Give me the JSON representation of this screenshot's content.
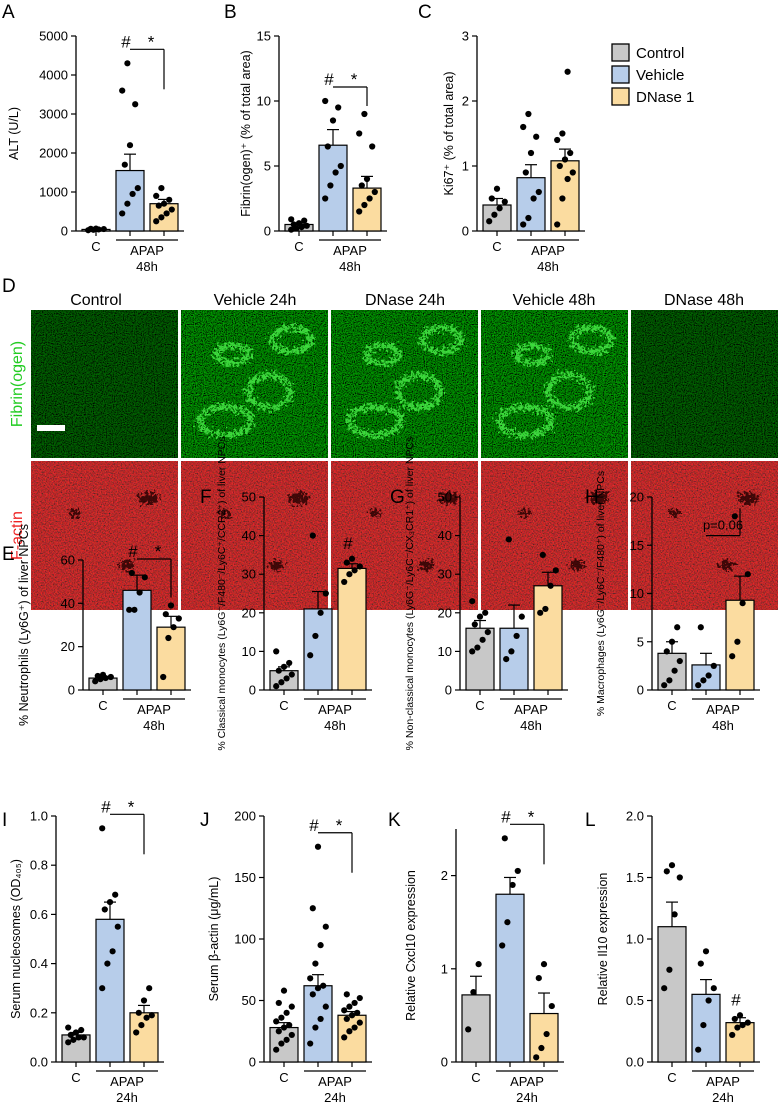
{
  "legend": [
    {
      "name": "Control",
      "color": "#c8c8c8"
    },
    {
      "name": "Vehicle",
      "color": "#b7cdea"
    },
    {
      "name": "DNase 1",
      "color": "#fbdca0"
    }
  ],
  "micrograph": {
    "panel": "D",
    "columns": [
      "Control",
      "Vehicle 24h",
      "DNase 24h",
      "Vehicle 48h",
      "DNase 48h"
    ],
    "rows": [
      {
        "label": "Fibrin(ogen)",
        "color": "#22cc22"
      },
      {
        "label": "F-actin",
        "color": "#ee2222"
      }
    ]
  },
  "chart_data": [
    {
      "panel": "A",
      "type": "bar",
      "categories": [
        "C",
        "APAP",
        "APAP"
      ],
      "group_label": "APAP",
      "time_label": "48h",
      "ylabel": "ALT (U/L)",
      "ylim": [
        0,
        5000
      ],
      "yticks": [
        0,
        1000,
        2000,
        3000,
        4000,
        5000
      ],
      "values": [
        40,
        1550,
        700
      ],
      "errors": [
        10,
        420,
        110
      ],
      "points": [
        [
          20,
          30,
          40,
          50,
          55,
          60
        ],
        [
          450,
          700,
          950,
          1100,
          1700,
          2200,
          3250,
          3600,
          4300
        ],
        [
          250,
          350,
          450,
          550,
          650,
          700,
          800,
          900,
          1100
        ]
      ],
      "annotations": [
        {
          "text": "#",
          "over": 1
        },
        {
          "text": "*",
          "from": 1,
          "to": 2
        }
      ]
    },
    {
      "panel": "B",
      "type": "bar",
      "categories": [
        "C",
        "APAP",
        "APAP"
      ],
      "group_label": "APAP",
      "time_label": "48h",
      "ylabel": "Fibrin(ogen)⁺ (% of total area)",
      "ylim": [
        0,
        15
      ],
      "yticks": [
        0,
        5,
        10,
        15
      ],
      "values": [
        0.5,
        6.6,
        3.3
      ],
      "errors": [
        0.1,
        1.2,
        0.9
      ],
      "points": [
        [
          0.1,
          0.2,
          0.3,
          0.4,
          0.5,
          0.6,
          0.8,
          0.9
        ],
        [
          2.5,
          3.5,
          4.5,
          5.0,
          6.5,
          8.5,
          9.5,
          10.0
        ],
        [
          1.5,
          2.0,
          2.5,
          3.0,
          3.5,
          4.0,
          6.5,
          7.5,
          9.0
        ]
      ],
      "annotations": [
        {
          "text": "#",
          "over": 1
        },
        {
          "text": "*",
          "from": 1,
          "to": 2
        }
      ]
    },
    {
      "panel": "C",
      "type": "bar",
      "categories": [
        "C",
        "APAP",
        "APAP"
      ],
      "group_label": "APAP",
      "time_label": "48h",
      "ylabel": "Ki67⁺ (% of total area)",
      "ylim": [
        0,
        3
      ],
      "yticks": [
        0,
        1,
        2,
        3
      ],
      "values": [
        0.4,
        0.82,
        1.08
      ],
      "errors": [
        0.1,
        0.2,
        0.18
      ],
      "points": [
        [
          0.15,
          0.25,
          0.35,
          0.45,
          0.5,
          0.65
        ],
        [
          0.1,
          0.2,
          0.5,
          0.6,
          0.9,
          1.2,
          1.45,
          1.6,
          1.8
        ],
        [
          0.1,
          0.5,
          0.8,
          0.9,
          1.0,
          1.1,
          1.2,
          1.4,
          1.5,
          2.45
        ]
      ],
      "annotations": []
    },
    {
      "panel": "E",
      "type": "bar",
      "categories": [
        "C",
        "APAP",
        "APAP"
      ],
      "group_label": "APAP",
      "time_label": "48h",
      "ylabel": "% Neutrophils (Ly6G⁺) of liver NPCs",
      "ylim": [
        0,
        60
      ],
      "yticks": [
        0,
        20,
        40,
        60
      ],
      "values": [
        5.5,
        46,
        29
      ],
      "errors": [
        0.7,
        7,
        5
      ],
      "points": [
        [
          4,
          5,
          5.5,
          6,
          6.5,
          7
        ],
        [
          37,
          37,
          45,
          52,
          54
        ],
        [
          6,
          24,
          29,
          33,
          35,
          39
        ]
      ],
      "annotations": [
        {
          "text": "#",
          "over": 1
        },
        {
          "text": "*",
          "from": 1,
          "to": 2
        }
      ]
    },
    {
      "panel": "F",
      "type": "bar",
      "categories": [
        "C",
        "APAP",
        "APAP"
      ],
      "group_label": "APAP",
      "time_label": "48h",
      "ylabel": "% Classical monocytes (Ly6G⁻/F480⁻/Ly6C⁺/CCR2⁺) of liver NPCs",
      "ylim": [
        0,
        50
      ],
      "yticks": [
        0,
        10,
        20,
        30,
        40,
        50
      ],
      "values": [
        5,
        21,
        31.5
      ],
      "errors": [
        1,
        4.5,
        1.2
      ],
      "points": [
        [
          1,
          2,
          3,
          4,
          5,
          6,
          7,
          10
        ],
        [
          9,
          14,
          20,
          25,
          40
        ],
        [
          28,
          30,
          31,
          32,
          33,
          34
        ]
      ],
      "annotations": [
        {
          "text": "#",
          "over": 2
        }
      ]
    },
    {
      "panel": "G",
      "type": "bar",
      "categories": [
        "C",
        "APAP",
        "APAP"
      ],
      "group_label": "APAP",
      "time_label": "48h",
      "ylabel": "% Non-classical monocytes (Ly6G⁻/Ly6C⁻/CX₃CR1⁺) of liver NPCs",
      "ylim": [
        0,
        50
      ],
      "yticks": [
        0,
        10,
        20,
        30,
        40,
        50
      ],
      "values": [
        16,
        16,
        27
      ],
      "errors": [
        2,
        6,
        3.5
      ],
      "points": [
        [
          10,
          11,
          13,
          15,
          17,
          19,
          20,
          23
        ],
        [
          8,
          10,
          14,
          19,
          39
        ],
        [
          20,
          21,
          27,
          31,
          35
        ]
      ],
      "annotations": []
    },
    {
      "panel": "H",
      "type": "bar",
      "categories": [
        "C",
        "APAP",
        "APAP"
      ],
      "group_label": "APAP",
      "time_label": "48h",
      "ylabel": "% Macrophages (Ly6G⁻/Ly6C⁻/F480⁺) of liver NPCs",
      "ylim": [
        0,
        20
      ],
      "yticks": [
        0,
        5,
        10,
        15,
        20
      ],
      "values": [
        3.8,
        2.6,
        9.3
      ],
      "errors": [
        1.2,
        1.2,
        2.5
      ],
      "points": [
        [
          0.5,
          1,
          2,
          3,
          4,
          5,
          6.5
        ],
        [
          0.5,
          1,
          1.5,
          2.5,
          6.5
        ],
        [
          3.5,
          5,
          9,
          12,
          18
        ]
      ],
      "annotations": [
        {
          "text": "p=0.06",
          "from": 1,
          "to": 2
        }
      ]
    },
    {
      "panel": "I",
      "type": "bar",
      "categories": [
        "C",
        "APAP",
        "APAP"
      ],
      "group_label": "APAP",
      "time_label": "24h",
      "ylabel": "Serum nucleosomes (OD₄₀₅)",
      "ylim": [
        0,
        1.0
      ],
      "yticks": [
        0.0,
        0.2,
        0.4,
        0.6,
        0.8,
        1.0
      ],
      "values": [
        0.11,
        0.58,
        0.2
      ],
      "errors": [
        0.01,
        0.07,
        0.03
      ],
      "points": [
        [
          0.08,
          0.09,
          0.1,
          0.1,
          0.11,
          0.12,
          0.13,
          0.14
        ],
        [
          0.3,
          0.4,
          0.45,
          0.55,
          0.62,
          0.65,
          0.68,
          0.95
        ],
        [
          0.12,
          0.15,
          0.18,
          0.19,
          0.2,
          0.25,
          0.3
        ]
      ],
      "annotations": [
        {
          "text": "#",
          "over": 1
        },
        {
          "text": "*",
          "from": 1,
          "to": 2
        }
      ]
    },
    {
      "panel": "J",
      "type": "bar",
      "categories": [
        "C",
        "APAP",
        "APAP"
      ],
      "group_label": "APAP",
      "time_label": "24h",
      "ylabel": "Serum β-actin (μg/mL)",
      "ylim": [
        0,
        200
      ],
      "yticks": [
        0,
        50,
        100,
        150,
        200
      ],
      "values": [
        28,
        62,
        38
      ],
      "errors": [
        4,
        9,
        3
      ],
      "points": [
        [
          10,
          15,
          18,
          22,
          25,
          28,
          30,
          33,
          36,
          40,
          45,
          48,
          58
        ],
        [
          15,
          28,
          35,
          45,
          55,
          60,
          62,
          68,
          80,
          95,
          110,
          125,
          175
        ],
        [
          20,
          25,
          28,
          32,
          35,
          38,
          40,
          42,
          45,
          48,
          52,
          55
        ]
      ],
      "annotations": [
        {
          "text": "#",
          "over": 1
        },
        {
          "text": "*",
          "from": 1,
          "to": 2
        }
      ]
    },
    {
      "panel": "K",
      "type": "bar",
      "categories": [
        "C",
        "APAP",
        "APAP"
      ],
      "group_label": "APAP",
      "time_label": "24h",
      "ylabel": "Relative Cxcl10 expression",
      "ylim": [
        0,
        2.5
      ],
      "yticks": [
        0,
        1,
        2
      ],
      "values": [
        0.72,
        1.8,
        0.52
      ],
      "errors": [
        0.2,
        0.18,
        0.22
      ],
      "points": [
        [
          0.35,
          0.75,
          1.05
        ],
        [
          1.25,
          1.5,
          1.9,
          2.05,
          2.4
        ],
        [
          0.05,
          0.15,
          0.3,
          0.6,
          0.9,
          1.05
        ]
      ],
      "annotations": [
        {
          "text": "#",
          "over": 1
        },
        {
          "text": "*",
          "from": 1,
          "to": 2
        }
      ]
    },
    {
      "panel": "L",
      "type": "bar",
      "categories": [
        "C",
        "APAP",
        "APAP"
      ],
      "group_label": "APAP",
      "time_label": "24h",
      "ylabel": "Relative Il10 expression",
      "ylim": [
        0,
        2.0
      ],
      "yticks": [
        0.0,
        0.5,
        1.0,
        1.5,
        2.0
      ],
      "values": [
        1.1,
        0.55,
        0.32
      ],
      "errors": [
        0.2,
        0.12,
        0.04
      ],
      "points": [
        [
          0.6,
          0.75,
          1.2,
          1.5,
          1.55,
          1.6
        ],
        [
          0.1,
          0.3,
          0.5,
          0.6,
          0.8,
          0.9
        ],
        [
          0.22,
          0.28,
          0.3,
          0.32,
          0.35,
          0.38
        ]
      ],
      "annotations": [
        {
          "text": "#",
          "over": 2
        }
      ]
    }
  ]
}
